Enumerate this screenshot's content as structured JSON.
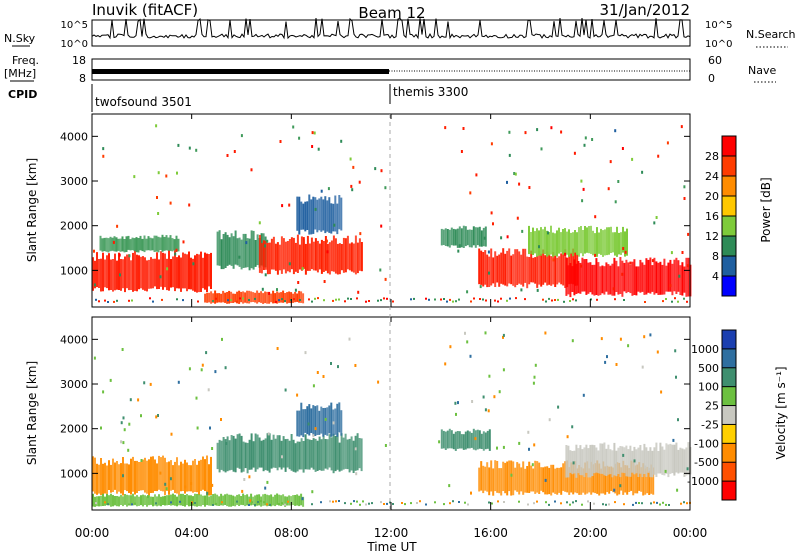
{
  "header": {
    "station": "Inuvik (fitACF)",
    "beam": "Beam 12",
    "date": "31/Jan/2012"
  },
  "nsky_panel": {
    "left_label": "N.Sky",
    "right_label": "N.Search",
    "ticks_left": [
      "10^5",
      "10^0"
    ],
    "ticks_right": [
      "10^5",
      "10^0"
    ]
  },
  "freq_panel": {
    "left_label_1": "Freq.",
    "left_label_2": "[MHz]",
    "right_label": "Nave",
    "ticks_left": [
      "18",
      "8"
    ],
    "ticks_right": [
      "60",
      "0"
    ]
  },
  "cpid_panel": {
    "label": "CPID",
    "programs": [
      {
        "name": "twofsound 3501",
        "start_hour": 0
      },
      {
        "name": "themis 3300",
        "start_hour": 12
      }
    ]
  },
  "power_panel": {
    "ylabel": "Slant Range [km]",
    "yticks": [
      "4000",
      "3000",
      "2000",
      "1000"
    ],
    "colorbar_label": "Power [dB]",
    "colorbar_ticks": [
      "28",
      "24",
      "20",
      "16",
      "12",
      "8",
      "4"
    ],
    "colorbar_colors": [
      "#ff0000",
      "#ff3c00",
      "#ff8c00",
      "#ffc800",
      "#7ecb3a",
      "#2e8b57",
      "#1f5fa0",
      "#0000ff"
    ]
  },
  "velocity_panel": {
    "ylabel": "Slant Range [km]",
    "yticks": [
      "4000",
      "3000",
      "2000",
      "1000"
    ],
    "colorbar_label": "Velocity [m s⁻¹]",
    "colorbar_ticks": [
      "1000",
      "500",
      "100",
      "25",
      "-25",
      "-100",
      "-500",
      "-1000"
    ],
    "colorbar_colors": [
      "#1b3fb0",
      "#2f6fa0",
      "#3f8f6f",
      "#6cc040",
      "#c8c8c0",
      "#ffd000",
      "#ff8c00",
      "#ff5000",
      "#ff0000"
    ]
  },
  "chart_data": {
    "type": "heatmap",
    "xlabel": "Time UT",
    "xticks": [
      "00:00",
      "04:00",
      "08:00",
      "12:00",
      "16:00",
      "20:00",
      "00:00"
    ],
    "x_range_hours": [
      0,
      24
    ],
    "y_range_km": [
      180,
      4500
    ],
    "power_regions": [
      {
        "t0": 0.0,
        "t1": 4.8,
        "r0": 500,
        "r1": 1450,
        "color": "#ff1a00"
      },
      {
        "t0": 0.3,
        "t1": 3.5,
        "r0": 1400,
        "r1": 1800,
        "color": "#3f9a5a"
      },
      {
        "t0": 4.5,
        "t1": 8.5,
        "r0": 250,
        "r1": 550,
        "color": "#ff3c00"
      },
      {
        "t0": 5.0,
        "t1": 7.0,
        "r0": 1000,
        "r1": 1900,
        "color": "#2e8b57"
      },
      {
        "t0": 6.7,
        "t1": 10.8,
        "r0": 900,
        "r1": 1800,
        "color": "#ff2000"
      },
      {
        "t0": 8.2,
        "t1": 10.0,
        "r0": 1800,
        "r1": 2700,
        "color": "#1f5fa0"
      },
      {
        "t0": 14.0,
        "t1": 15.8,
        "r0": 1500,
        "r1": 2000,
        "color": "#2e8b57"
      },
      {
        "t0": 15.5,
        "t1": 19.5,
        "r0": 600,
        "r1": 1500,
        "color": "#ff1a00"
      },
      {
        "t0": 19.0,
        "t1": 24.0,
        "r0": 400,
        "r1": 1300,
        "color": "#ff0000"
      },
      {
        "t0": 17.5,
        "t1": 21.5,
        "r0": 1300,
        "r1": 2000,
        "color": "#7ecb3a"
      }
    ],
    "velocity_regions": [
      {
        "t0": 0.0,
        "t1": 4.8,
        "r0": 500,
        "r1": 1400,
        "color": "#ff8c00"
      },
      {
        "t0": 0.0,
        "t1": 4.5,
        "r0": 250,
        "r1": 550,
        "color": "#6cc040"
      },
      {
        "t0": 4.5,
        "t1": 8.5,
        "r0": 250,
        "r1": 550,
        "color": "#6cc040"
      },
      {
        "t0": 5.0,
        "t1": 10.8,
        "r0": 1000,
        "r1": 1900,
        "color": "#3f8f6f"
      },
      {
        "t0": 8.2,
        "t1": 10.0,
        "r0": 1800,
        "r1": 2600,
        "color": "#2f6fa0"
      },
      {
        "t0": 14.0,
        "t1": 16.0,
        "r0": 1500,
        "r1": 2000,
        "color": "#3f8f6f"
      },
      {
        "t0": 15.5,
        "t1": 22.5,
        "r0": 500,
        "r1": 1300,
        "color": "#ff8c00"
      },
      {
        "t0": 19.0,
        "t1": 24.0,
        "r0": 900,
        "r1": 1700,
        "color": "#c8c8c0"
      }
    ]
  }
}
